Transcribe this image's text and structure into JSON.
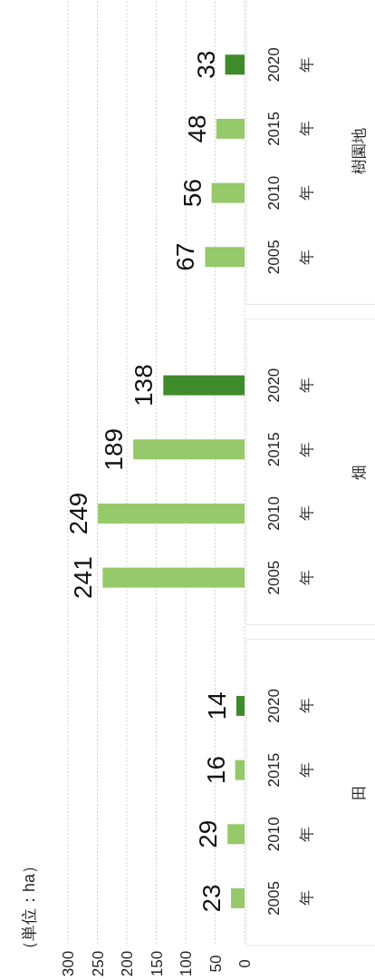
{
  "chart_data": {
    "type": "bar",
    "orientation": "horizontal",
    "ylabel": "（単位：ha）",
    "categories": [
      "2020年",
      "2015年",
      "2010年",
      "2005年",
      "2020年",
      "2015年",
      "2010年",
      "2005年",
      "2020年",
      "2015年",
      "2010年",
      "2005年"
    ],
    "values": [
      33,
      48,
      56,
      67,
      138,
      189,
      249,
      241,
      14,
      16,
      29,
      23
    ],
    "colors": [
      "#3f8a2a",
      "#95c96a",
      "#95c96a",
      "#95c96a",
      "#3f8a2a",
      "#95c96a",
      "#95c96a",
      "#95c96a",
      "#3f8a2a",
      "#95c96a",
      "#95c96a",
      "#95c96a"
    ],
    "xlim": [
      300,
      0
    ],
    "xticks": [
      300,
      250,
      200,
      150,
      100,
      50,
      0
    ],
    "grid": "x",
    "data_labels": true,
    "annotations": [
      "樹園地",
      "畑",
      "田"
    ]
  }
}
